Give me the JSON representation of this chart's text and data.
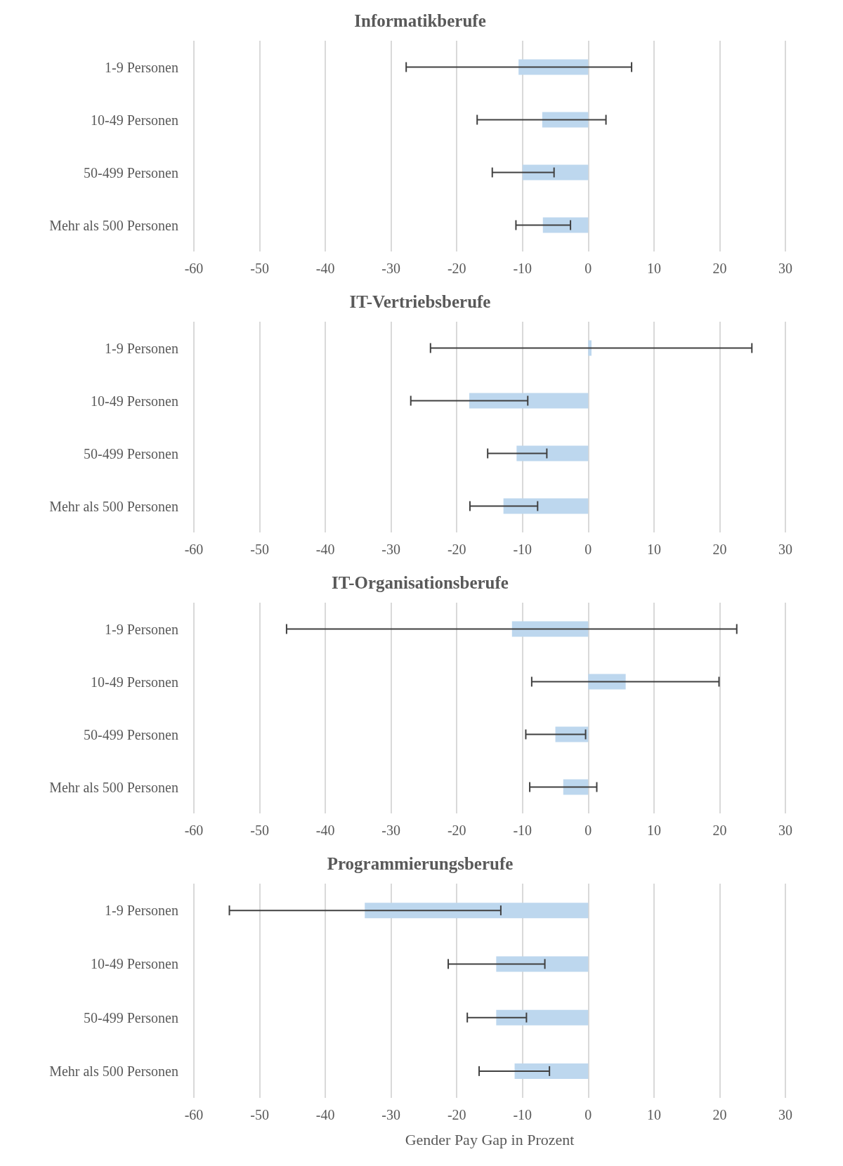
{
  "chart_data": [
    {
      "type": "bar",
      "orientation": "horizontal",
      "title": "Informatikberufe",
      "categories": [
        "1-9 Personen",
        "10-49 Personen",
        "50-499 Personen",
        "Mehr als 500 Personen"
      ],
      "values": [
        -10.6,
        -7.0,
        -10.0,
        -6.9
      ],
      "color": "#bdd7ee",
      "errors": [
        [
          -27.7,
          6.6
        ],
        [
          -16.9,
          2.7
        ],
        [
          -14.6,
          -5.2
        ],
        [
          -11.0,
          -2.7
        ]
      ],
      "xlim": [
        -60,
        30
      ],
      "xticks": [
        -60,
        -50,
        -40,
        -30,
        -20,
        -10,
        0,
        10,
        20,
        30
      ],
      "grid": "x"
    },
    {
      "type": "bar",
      "orientation": "horizontal",
      "title": "IT-Vertriebsberufe",
      "categories": [
        "1-9 Personen",
        "10-49 Personen",
        "50-499 Personen",
        "Mehr als 500 Personen"
      ],
      "values": [
        0.5,
        -18.1,
        -10.9,
        -12.9
      ],
      "color": "#bdd7ee",
      "errors": [
        [
          -24.0,
          24.9
        ],
        [
          -27.0,
          -9.2
        ],
        [
          -15.3,
          -6.3
        ],
        [
          -18.0,
          -7.7
        ]
      ],
      "xlim": [
        -60,
        30
      ],
      "xticks": [
        -60,
        -50,
        -40,
        -30,
        -20,
        -10,
        0,
        10,
        20,
        30
      ],
      "grid": "x"
    },
    {
      "type": "bar",
      "orientation": "horizontal",
      "title": "IT-Organisationsberufe",
      "categories": [
        "1-9 Personen",
        "10-49 Personen",
        "50-499 Personen",
        "Mehr als 500 Personen"
      ],
      "values": [
        -11.6,
        5.7,
        -5.0,
        -3.8
      ],
      "color": "#bdd7ee",
      "errors": [
        [
          -45.9,
          22.6
        ],
        [
          -8.6,
          19.9
        ],
        [
          -9.5,
          -0.4
        ],
        [
          -8.9,
          1.3
        ]
      ],
      "xlim": [
        -60,
        30
      ],
      "xticks": [
        -60,
        -50,
        -40,
        -30,
        -20,
        -10,
        0,
        10,
        20,
        30
      ],
      "grid": "x"
    },
    {
      "type": "bar",
      "orientation": "horizontal",
      "title": "Programmierungsberufe",
      "xlabel": "Gender Pay Gap in Prozent",
      "categories": [
        "1-9 Personen",
        "10-49 Personen",
        "50-499 Personen",
        "Mehr als 500 Personen"
      ],
      "values": [
        -34.0,
        -14.0,
        -14.0,
        -11.2
      ],
      "color": "#bdd7ee",
      "errors": [
        [
          -54.6,
          -13.3
        ],
        [
          -21.3,
          -6.6
        ],
        [
          -18.4,
          -9.4
        ],
        [
          -16.6,
          -5.9
        ]
      ],
      "xlim": [
        -60,
        30
      ],
      "xticks": [
        -60,
        -50,
        -40,
        -30,
        -20,
        -10,
        0,
        10,
        20,
        30
      ],
      "grid": "x"
    }
  ]
}
